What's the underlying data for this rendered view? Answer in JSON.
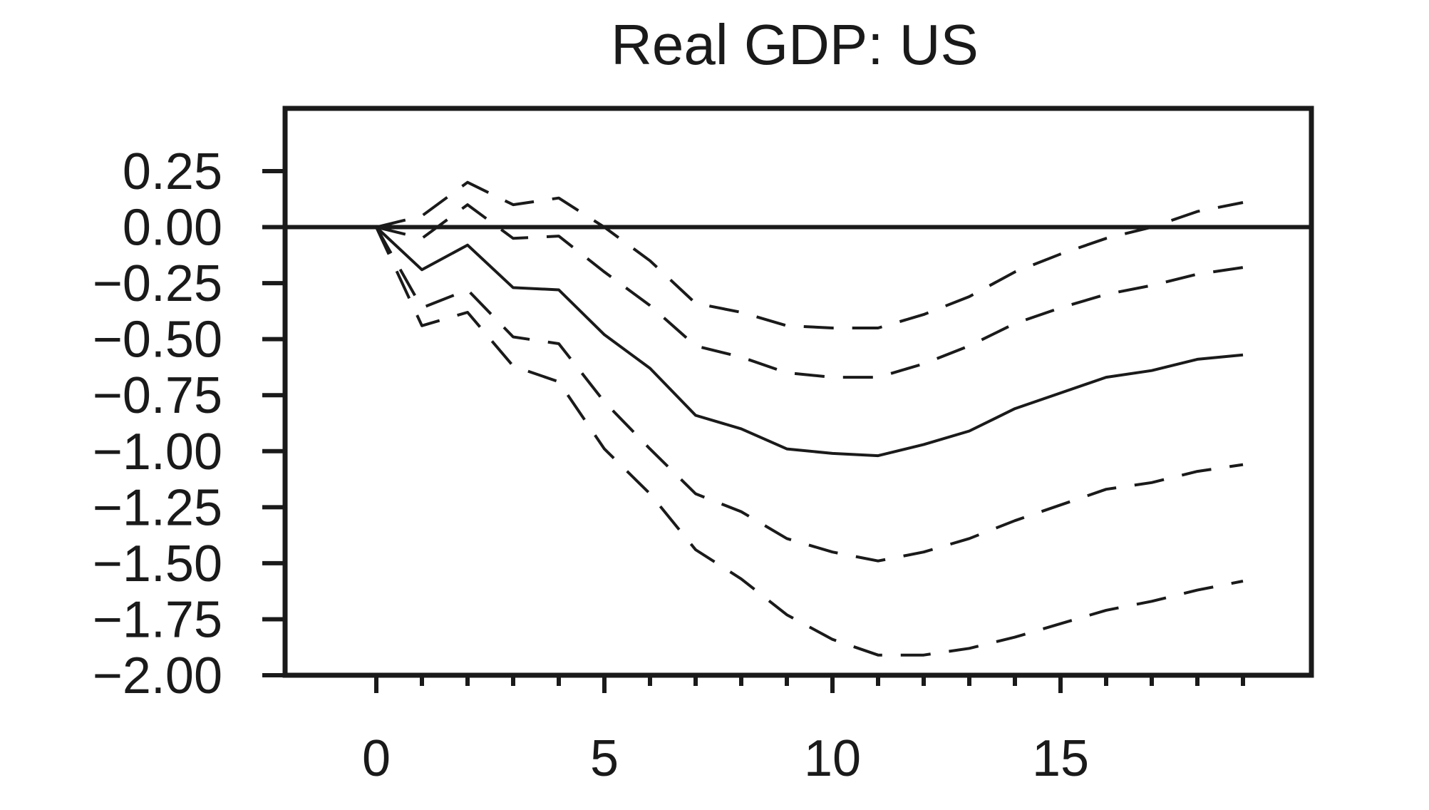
{
  "chart_data": {
    "type": "line",
    "title": "Real GDP: US",
    "xlabel": "",
    "ylabel": "",
    "xlim": [
      -2,
      20.5
    ],
    "ylim": [
      -2.0,
      0.25
    ],
    "xticks_labeled": [
      0,
      5,
      10,
      15
    ],
    "xticks_minor": [
      0,
      1,
      2,
      3,
      4,
      5,
      6,
      7,
      8,
      9,
      10,
      11,
      12,
      13,
      14,
      15,
      16,
      17,
      18,
      19
    ],
    "yticks": [
      {
        "value": 0.25,
        "label": "0.25"
      },
      {
        "value": 0.0,
        "label": "0.00"
      },
      {
        "value": -0.25,
        "label": "−0.25"
      },
      {
        "value": -0.5,
        "label": "−0.50"
      },
      {
        "value": -0.75,
        "label": "−0.75"
      },
      {
        "value": -1.0,
        "label": "−1.00"
      },
      {
        "value": -1.25,
        "label": "−1.25"
      },
      {
        "value": -1.5,
        "label": "−1.50"
      },
      {
        "value": -1.75,
        "label": "−1.75"
      },
      {
        "value": -2.0,
        "label": "−2.00"
      }
    ],
    "zero_line": 0,
    "grid": false,
    "legend": "none",
    "x": [
      0,
      1,
      2,
      3,
      4,
      5,
      6,
      7,
      8,
      9,
      10,
      11,
      12,
      13,
      14,
      15,
      16,
      17,
      18,
      19
    ],
    "series": [
      {
        "style": "dashed",
        "values": [
          0.0,
          0.05,
          0.2,
          0.1,
          0.13,
          0.0,
          -0.15,
          -0.34,
          -0.38,
          -0.44,
          -0.45,
          -0.45,
          -0.39,
          -0.31,
          -0.2,
          -0.12,
          -0.05,
          0.0,
          0.07,
          0.11
        ]
      },
      {
        "style": "dashed",
        "values": [
          0.0,
          -0.05,
          0.1,
          -0.05,
          -0.04,
          -0.2,
          -0.35,
          -0.53,
          -0.58,
          -0.65,
          -0.67,
          -0.67,
          -0.61,
          -0.53,
          -0.43,
          -0.36,
          -0.3,
          -0.26,
          -0.21,
          -0.18
        ]
      },
      {
        "style": "solid",
        "values": [
          0.0,
          -0.19,
          -0.08,
          -0.27,
          -0.28,
          -0.48,
          -0.63,
          -0.84,
          -0.9,
          -0.99,
          -1.01,
          -1.02,
          -0.97,
          -0.91,
          -0.81,
          -0.74,
          -0.67,
          -0.64,
          -0.59,
          -0.57
        ]
      },
      {
        "style": "dashed",
        "values": [
          0.0,
          -0.36,
          -0.28,
          -0.49,
          -0.52,
          -0.78,
          -0.99,
          -1.19,
          -1.27,
          -1.39,
          -1.45,
          -1.49,
          -1.45,
          -1.39,
          -1.31,
          -1.24,
          -1.17,
          -1.14,
          -1.09,
          -1.06
        ]
      },
      {
        "style": "dashed",
        "values": [
          0.0,
          -0.44,
          -0.38,
          -0.62,
          -0.69,
          -0.99,
          -1.19,
          -1.44,
          -1.57,
          -1.73,
          -1.84,
          -1.91,
          -1.91,
          -1.88,
          -1.83,
          -1.77,
          -1.71,
          -1.67,
          -1.62,
          -1.58
        ]
      }
    ]
  }
}
